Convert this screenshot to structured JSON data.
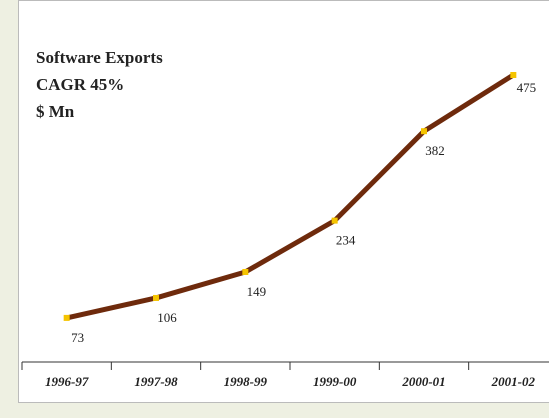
{
  "chart_data": {
    "type": "line",
    "title_lines": [
      "Software Exports",
      "CAGR 45%",
      "$ Mn"
    ],
    "categories": [
      "1996-97",
      "1997-98",
      "1998-99",
      "1999-00",
      "2000-01",
      "2001-02"
    ],
    "series": [
      {
        "name": "Software Exports",
        "color": "#6e2a0c",
        "marker_color": "#f5c400",
        "values": [
          73,
          106,
          149,
          234,
          382,
          475
        ]
      }
    ]
  }
}
